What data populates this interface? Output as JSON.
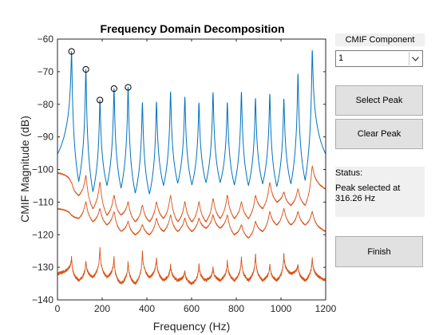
{
  "window": {
    "component_label": "CMIF Component",
    "component_value": "1",
    "select_peak_label": "Select Peak",
    "clear_peak_label": "Clear Peak",
    "status_title": "Status:",
    "status_text": "Peak selected at 316.26 Hz",
    "finish_label": "Finish"
  },
  "chart_data": {
    "type": "line",
    "title": "Frequency Domain Decomposition",
    "xlabel": "Frequency (Hz)",
    "ylabel": "CMIF Magnitude (dB)",
    "xlim": [
      0,
      1200
    ],
    "ylim": [
      -140,
      -60
    ],
    "xticks": [
      0,
      200,
      400,
      600,
      800,
      1000,
      1200
    ],
    "yticks": [
      -60,
      -70,
      -80,
      -90,
      -100,
      -110,
      -120,
      -130,
      -140
    ],
    "grid": false,
    "colors": {
      "first": "#0072bd",
      "other": "#d95319",
      "marker": "#000000"
    },
    "series": [
      {
        "peaks": [
          [
            63,
            -63.8
          ],
          [
            127,
            -69.3
          ],
          [
            190,
            -78.7
          ],
          [
            253,
            -75.2
          ],
          [
            316,
            -74.8
          ],
          [
            380,
            -79.5
          ],
          [
            443,
            -79.3
          ],
          [
            506,
            -76.2
          ],
          [
            570,
            -77.8
          ],
          [
            633,
            -79.6
          ],
          [
            696,
            -76.4
          ],
          [
            760,
            -79.5
          ],
          [
            823,
            -76.3
          ],
          [
            886,
            -78.2
          ],
          [
            950,
            -76.9
          ],
          [
            1013,
            -78.4
          ],
          [
            1076,
            -70.7
          ],
          [
            1140,
            -63.5
          ]
        ],
        "valleys": [
          -95.3,
          -103.7,
          -106.8,
          -104.9,
          -105.7,
          -107.2,
          -107.5,
          -104.9,
          -104.2,
          -104.7,
          -104.0,
          -104.0,
          -104.7,
          -104.9,
          -104.4,
          -105.2,
          -104.4,
          -103.3,
          -95.3
        ]
      },
      {
        "peaks": [
          [
            63,
            -104
          ],
          [
            127,
            -102
          ],
          [
            190,
            -104
          ],
          [
            253,
            -108
          ],
          [
            316,
            -110
          ],
          [
            380,
            -111
          ],
          [
            443,
            -110
          ],
          [
            506,
            -108
          ],
          [
            570,
            -110
          ],
          [
            633,
            -110
          ],
          [
            696,
            -109
          ],
          [
            760,
            -108
          ],
          [
            823,
            -110
          ],
          [
            886,
            -108
          ],
          [
            950,
            -104
          ],
          [
            1013,
            -107
          ],
          [
            1076,
            -106
          ],
          [
            1140,
            -99
          ]
        ],
        "valleys": [
          -101,
          -108,
          -112,
          -114,
          -114,
          -116,
          -116,
          -115,
          -116,
          -116,
          -116,
          -115,
          -115,
          -115,
          -112,
          -110,
          -111,
          -111,
          -106
        ]
      },
      {
        "peaks": [
          [
            63,
            -114
          ],
          [
            127,
            -110
          ],
          [
            190,
            -112
          ],
          [
            253,
            -113
          ],
          [
            316,
            -116
          ],
          [
            380,
            -117
          ],
          [
            443,
            -115
          ],
          [
            506,
            -114
          ],
          [
            570,
            -115
          ],
          [
            633,
            -115
          ],
          [
            696,
            -114
          ],
          [
            760,
            -114
          ],
          [
            823,
            -117
          ],
          [
            886,
            -116
          ],
          [
            950,
            -113
          ],
          [
            1013,
            -112
          ],
          [
            1076,
            -113
          ],
          [
            1140,
            -113
          ]
        ],
        "valleys": [
          -112,
          -115,
          -116,
          -117,
          -119,
          -120,
          -120,
          -119,
          -119,
          -119,
          -118,
          -118,
          -120,
          -121,
          -119,
          -117,
          -117,
          -117,
          -119
        ]
      },
      {
        "peaks": [
          [
            63,
            -127
          ],
          [
            127,
            -128
          ],
          [
            190,
            -124
          ],
          [
            253,
            -127
          ],
          [
            316,
            -128
          ],
          [
            380,
            -125
          ],
          [
            443,
            -127
          ],
          [
            506,
            -129
          ],
          [
            570,
            -131
          ],
          [
            633,
            -129
          ],
          [
            696,
            -130
          ],
          [
            760,
            -128
          ],
          [
            823,
            -127
          ],
          [
            886,
            -126
          ],
          [
            950,
            -129
          ],
          [
            1013,
            -126
          ],
          [
            1076,
            -129
          ],
          [
            1140,
            -127
          ]
        ],
        "valleys": [
          -132,
          -134,
          -133,
          -133,
          -135,
          -135,
          -133,
          -134,
          -134,
          -135,
          -134,
          -134,
          -134,
          -134,
          -134,
          -134,
          -132,
          -134,
          -134
        ]
      }
    ],
    "selected_markers": [
      [
        63,
        -63.8
      ],
      [
        127,
        -69.3
      ],
      [
        190,
        -78.7
      ],
      [
        253,
        -75.2
      ],
      [
        316,
        -74.8
      ]
    ]
  }
}
